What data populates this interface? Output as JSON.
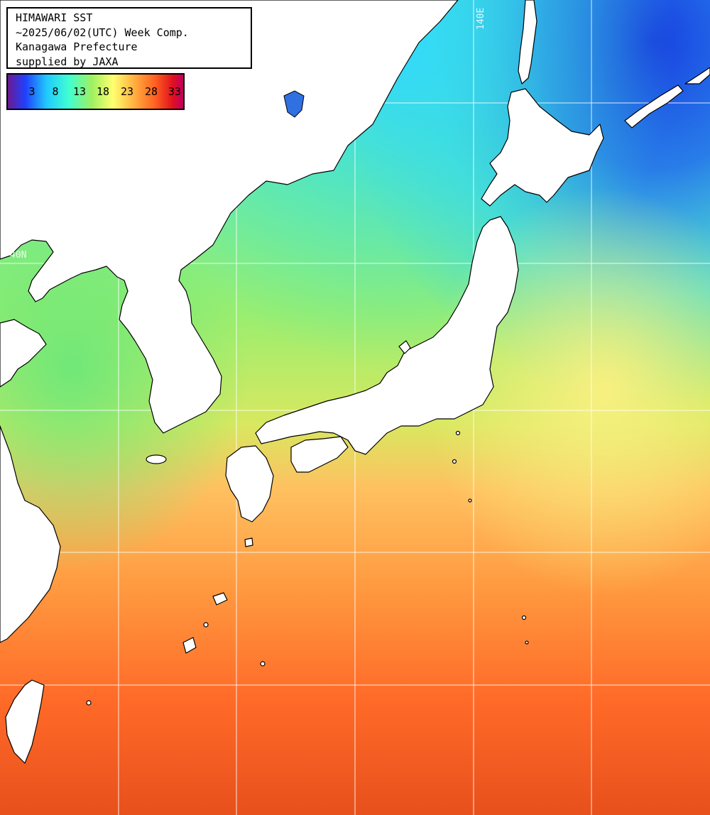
{
  "header": {
    "title": "HIMAWARI SST",
    "period": "~2025/06/02(UTC) Week Comp.",
    "region": "Kanagawa Prefecture",
    "credit": "supplied by JAXA"
  },
  "legend": {
    "ticks": [
      "3",
      "8",
      "13",
      "18",
      "23",
      "28",
      "33"
    ],
    "colors": [
      "#5a1a90",
      "#2040ff",
      "#20c8ff",
      "#40ffc0",
      "#90f060",
      "#ffff70",
      "#ffb040",
      "#ff6020",
      "#e01020",
      "#c00050"
    ]
  },
  "grid": {
    "lat_label": "40N",
    "lon_label": "140E"
  },
  "colors": {
    "land": "#ffffff",
    "coast": "#000000",
    "grid_line": "#ffffff",
    "sea_cold": "#1a60e0",
    "sea_cool": "#30e0ff",
    "sea_mild": "#80f070",
    "sea_warm": "#ffd060",
    "sea_hot": "#ff5020"
  }
}
